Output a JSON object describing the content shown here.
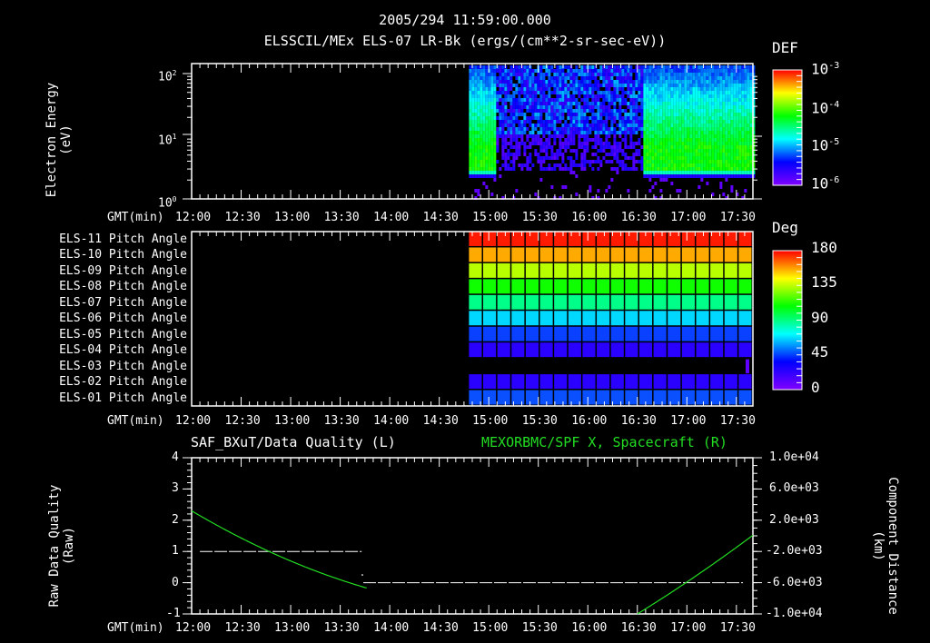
{
  "header": {
    "timestamp": "2005/294 11:59:00.000",
    "subtitle": "ELSSCIL/MEx ELS-07 LR-Bk  (ergs/(cm**2-sr-sec-eV))"
  },
  "panel1": {
    "ylabel_line1": "Electron Energy",
    "ylabel_line2": "(eV)",
    "yticks": [
      "10",
      "10",
      "10"
    ],
    "yexps": [
      "2",
      "1",
      "0"
    ],
    "colorbar_title": "DEF",
    "colorbar_ticks": [
      "10",
      "10",
      "10",
      "10"
    ],
    "colorbar_exps": [
      "-3",
      "-4",
      "-5",
      "-6"
    ]
  },
  "panel2": {
    "row_labels": [
      "ELS-11 Pitch Angle",
      "ELS-10 Pitch Angle",
      "ELS-09 Pitch Angle",
      "ELS-08 Pitch Angle",
      "ELS-07 Pitch Angle",
      "ELS-06 Pitch Angle",
      "ELS-05 Pitch Angle",
      "ELS-04 Pitch Angle",
      "ELS-03 Pitch Angle",
      "ELS-02 Pitch Angle",
      "ELS-01 Pitch Angle"
    ],
    "row_colors": [
      "#ff1a00",
      "#ffaa00",
      "#b8ff00",
      "#10ff00",
      "#00ff88",
      "#00d8ff",
      "#0a40ff",
      "#2a00ff",
      "#000000",
      "#2a00ff",
      "#0a50ff"
    ],
    "colorbar_title": "Deg",
    "colorbar_ticks": [
      "180",
      "135",
      "90",
      "45",
      "0"
    ]
  },
  "panel3": {
    "left_title": "SAF_BXuT/Data Quality (L)",
    "right_title": "MEXORBMC/SPF X, Spacecraft (R)",
    "ylabel_left_line1": "Raw Data Quality",
    "ylabel_left_line2": "(Raw)",
    "ylabel_right_line1": "Component Distance",
    "ylabel_right_line2": "(km)",
    "yticks_left": [
      "4",
      "3",
      "2",
      "1",
      "0",
      "-1"
    ],
    "yticks_right": [
      "1.0e+04",
      "6.0e+03",
      "2.0e+03",
      "-2.0e+03",
      "-6.0e+03",
      "-1.0e+04"
    ]
  },
  "xaxis": {
    "label": "GMT(min)",
    "ticks": [
      "12:00",
      "12:30",
      "13:00",
      "13:30",
      "14:00",
      "14:30",
      "15:00",
      "15:30",
      "16:00",
      "16:30",
      "17:00",
      "17:30"
    ]
  },
  "colors": {
    "background": "#000000",
    "axes": "#ffffff",
    "orbit_line": "#22dd22",
    "quality_line": "#ffffff"
  },
  "chart_data": [
    {
      "type": "heatmap",
      "title": "ELSSCIL/MEx ELS-07 LR-Bk (ergs/(cm**2-sr-sec-eV))",
      "xlabel": "GMT(min)",
      "ylabel": "Electron Energy (eV)",
      "yscale": "log",
      "ylim": [
        1,
        150
      ],
      "xlim": [
        "12:00",
        "17:40"
      ],
      "colorbar": {
        "label": "DEF",
        "scale": "log",
        "range": [
          1e-06,
          0.001
        ]
      },
      "notes": "Data begins ~14:48; high flux (green, ~1e-4) from ~14:48-15:03 and ~16:35-17:40 above ~3 eV; weak flux (blue/purple, ~1e-6 to 1e-5) 15:03-16:35"
    },
    {
      "type": "heatmap",
      "title": "ELS Pitch Angles",
      "categories": [
        "ELS-11",
        "ELS-10",
        "ELS-09",
        "ELS-08",
        "ELS-07",
        "ELS-06",
        "ELS-05",
        "ELS-04",
        "ELS-03",
        "ELS-02",
        "ELS-01"
      ],
      "approx_values_deg": [
        175,
        150,
        120,
        100,
        85,
        70,
        40,
        25,
        null,
        25,
        35
      ],
      "xlim": [
        "12:00",
        "17:40"
      ],
      "notes": "Data present from ~14:48 onward; ELS-03 empty except final sample",
      "colorbar": {
        "label": "Deg",
        "range": [
          0,
          180
        ]
      }
    },
    {
      "type": "line",
      "title": "SAF_BXuT/Data Quality (L) & MEXORBMC/SPF X, Spacecraft (R)",
      "x": [
        "12:00",
        "12:30",
        "13:00",
        "13:30",
        "13:45",
        "14:00",
        "15:00",
        "16:00",
        "16:30",
        "17:00",
        "17:30",
        "17:40"
      ],
      "series": [
        {
          "name": "Data Quality (L)",
          "axis": "left",
          "values": [
            1,
            1,
            1,
            1,
            0,
            0,
            0,
            0,
            0,
            0,
            0,
            0
          ]
        },
        {
          "name": "SPF X (R, km)",
          "axis": "right",
          "values": [
            3200,
            -700,
            -4500,
            -8200,
            -10000,
            null,
            null,
            null,
            -10000,
            -6000,
            -400,
            3600
          ]
        }
      ],
      "ylim_left": [
        -1,
        4
      ],
      "ylim_right": [
        -10000,
        10000
      ],
      "xlabel": "GMT(min)",
      "ylabel_left": "Raw Data Quality (Raw)",
      "ylabel_right": "Component Distance (km)"
    }
  ]
}
